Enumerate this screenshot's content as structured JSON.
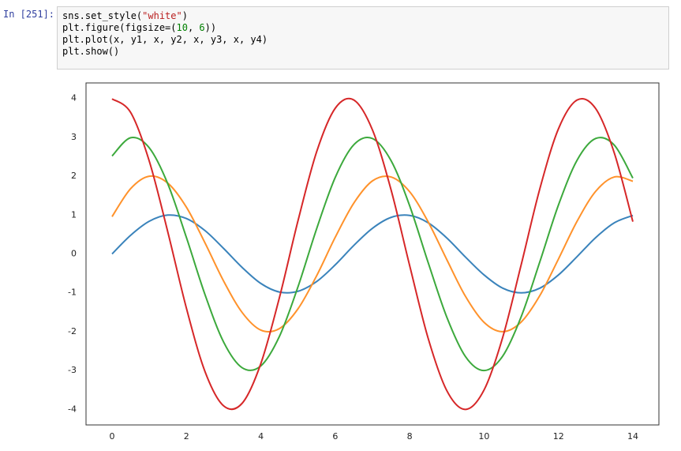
{
  "cell": {
    "prompt": "In [251]:",
    "code": [
      [
        {
          "text": "sns.set_style(",
          "color": "#000000"
        },
        {
          "text": "\"white\"",
          "color": "#ba2121"
        },
        {
          "text": ")",
          "color": "#000000"
        }
      ],
      [
        {
          "text": "plt.figure(figsize=(",
          "color": "#000000"
        },
        {
          "text": "10",
          "color": "#008000"
        },
        {
          "text": ", ",
          "color": "#000000"
        },
        {
          "text": "6",
          "color": "#008000"
        },
        {
          "text": "))",
          "color": "#000000"
        }
      ],
      [
        {
          "text": "plt.plot(x, y1, x, y2, x, y3, x, y4)",
          "color": "#000000"
        }
      ],
      [
        {
          "text": "plt.show()",
          "color": "#000000"
        }
      ]
    ]
  },
  "chart_data": {
    "type": "line",
    "x": [
      0,
      0.5,
      1,
      1.5,
      2,
      2.5,
      3,
      3.5,
      4,
      4.5,
      5,
      5.5,
      6,
      6.5,
      7,
      7.5,
      8,
      8.5,
      9,
      9.5,
      10,
      10.5,
      11,
      11.5,
      12,
      12.5,
      13,
      13.5,
      14
    ],
    "series": [
      {
        "color": "#3a83bb",
        "values": [
          0,
          0.48,
          0.84,
          1.0,
          0.91,
          0.6,
          0.14,
          -0.35,
          -0.76,
          -0.98,
          -0.96,
          -0.71,
          -0.28,
          0.22,
          0.66,
          0.94,
          0.99,
          0.8,
          0.41,
          -0.08,
          -0.54,
          -0.88,
          -1.0,
          -0.88,
          -0.54,
          -0.07,
          0.42,
          0.8,
          0.99
        ]
      },
      {
        "color": "#ff922b",
        "values": [
          0.96,
          1.68,
          2.0,
          1.82,
          1.2,
          0.28,
          -0.7,
          -1.51,
          -1.96,
          -1.92,
          -1.41,
          -0.56,
          0.43,
          1.31,
          1.88,
          1.98,
          1.6,
          0.82,
          -0.15,
          -1.09,
          -1.76,
          -2.0,
          -1.75,
          -1.07,
          -0.13,
          0.84,
          1.61,
          1.98,
          1.87
        ]
      },
      {
        "color": "#3ca93c",
        "values": [
          2.52,
          2.99,
          2.73,
          1.8,
          0.42,
          -1.05,
          -2.27,
          -2.93,
          -2.88,
          -2.12,
          -0.84,
          0.65,
          1.97,
          2.81,
          2.97,
          2.4,
          1.24,
          -0.23,
          -1.63,
          -2.64,
          -3.0,
          -2.63,
          -1.61,
          -0.2,
          1.26,
          2.41,
          2.97,
          2.8,
          1.95
        ]
      },
      {
        "color": "#d62728",
        "values": [
          3.99,
          3.64,
          2.39,
          0.56,
          -1.4,
          -3.03,
          -3.91,
          -3.84,
          -2.82,
          -1.12,
          0.86,
          2.63,
          3.75,
          3.96,
          3.19,
          1.65,
          -0.3,
          -2.18,
          -3.52,
          -4.0,
          -3.5,
          -2.15,
          -0.27,
          1.68,
          3.22,
          3.96,
          3.74,
          2.6,
          0.83
        ]
      }
    ],
    "xlim": [
      -0.7,
      14.7
    ],
    "xticks": [
      0,
      2,
      4,
      6,
      8,
      10,
      12,
      14
    ],
    "ylim": [
      -4.4,
      4.4
    ],
    "yticks": [
      -4,
      -3,
      -2,
      -1,
      0,
      1,
      2,
      3,
      4
    ],
    "grid": false
  }
}
